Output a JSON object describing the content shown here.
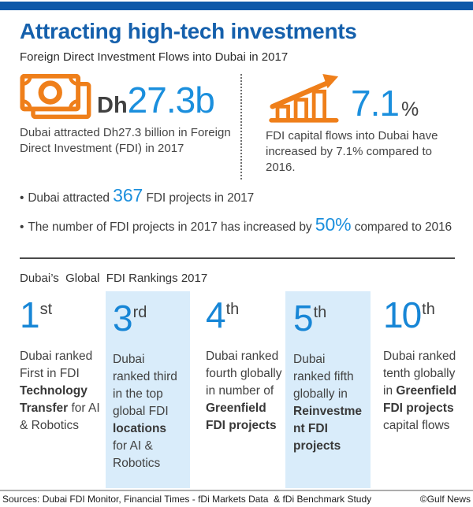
{
  "page": {
    "title": "Attracting high-tech investments",
    "subtitle": "Foreign Direct Investment Flows into Dubai in 2017"
  },
  "colors": {
    "header_bar_blue": "#0E59A9",
    "title_blue": "#1560AC",
    "accent_blue": "#1B8FDD",
    "icon_orange": "#EF7F1A",
    "text_dark_gray": "#414141",
    "highlight_panel_blue": "#D9ECFA"
  },
  "stats": {
    "left": {
      "icon": "banknote-icon",
      "currency_prefix": "Dh",
      "value": "27.3b",
      "description": "Dubai attracted Dh27.3 billion in Foreign Direct Investment (FDI) in 2017"
    },
    "right": {
      "icon": "bar-chart-rising-icon",
      "value": "7.1",
      "unit": "%",
      "description": "FDI capital flows into Dubai have increased by 7.1% compared to 2016."
    }
  },
  "bullets": [
    {
      "marker": "•",
      "pre": "Dubai attracted ",
      "highlight": "367",
      "post": " FDI projects in 2017"
    },
    {
      "marker": "•",
      "pre": "The number of FDI projects in 2017 has increased by ",
      "highlight": "50%",
      "post": " compared to 2016"
    }
  ],
  "rankings": {
    "heading": "Dubai’s  Global  FDI Rankings 2017",
    "items": [
      {
        "rank": "1",
        "suffix": "st",
        "highlighted": false,
        "parts": [
          {
            "text": "Dubai ranked First in FDI ",
            "bold": false
          },
          {
            "text": "Technology Transfer",
            "bold": true
          },
          {
            "text": " for AI & Robotics",
            "bold": false
          }
        ]
      },
      {
        "rank": "3",
        "suffix": "rd",
        "highlighted": true,
        "parts": [
          {
            "text": "Dubai ranked third in the top global  FDI ",
            "bold": false
          },
          {
            "text": "locations",
            "bold": true
          },
          {
            "text": " for AI & Robotics",
            "bold": false
          }
        ]
      },
      {
        "rank": "4",
        "suffix": "th",
        "highlighted": false,
        "parts": [
          {
            "text": "Dubai ranked fourth globally in number of ",
            "bold": false
          },
          {
            "text": "Greenfield FDI projects",
            "bold": true
          }
        ]
      },
      {
        "rank": "5",
        "suffix": "th",
        "highlighted": true,
        "parts": [
          {
            "text": "Dubai ranked fifth globally in ",
            "bold": false
          },
          {
            "text": "Reinvestment FDI projects",
            "bold": true
          }
        ]
      },
      {
        "rank": "10",
        "suffix": "th",
        "highlighted": false,
        "parts": [
          {
            "text": "Dubai ranked tenth globally in ",
            "bold": false
          },
          {
            "text": "Greenfield FDI projects",
            "bold": true
          },
          {
            "text": " capital flows",
            "bold": false
          }
        ]
      }
    ]
  },
  "footer": {
    "sources": "Sources: Dubai FDI Monitor, Financial Times - fDi Markets Data  & fDi Benchmark Study",
    "credit": "©Gulf News"
  }
}
